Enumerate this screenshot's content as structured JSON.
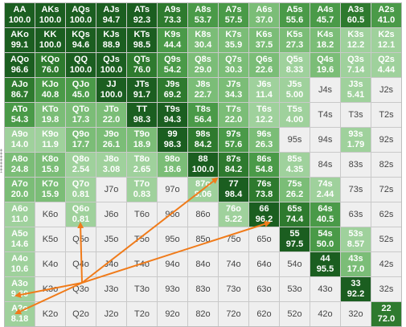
{
  "colors": {
    "lvl0": "#efefef",
    "lvl1": "#9fd19c",
    "lvl2": "#7bbd77",
    "lvl3": "#4a9a48",
    "lvl4": "#2e7a2e",
    "lvl5": "#1b5e20",
    "arrow": "#f07b1a"
  },
  "grid": [
    [
      [
        "AA",
        "100.0"
      ],
      [
        "AKs",
        "100.0"
      ],
      [
        "AQs",
        "100.0"
      ],
      [
        "AJs",
        "94.7"
      ],
      [
        "ATs",
        "92.3"
      ],
      [
        "A9s",
        "73.3"
      ],
      [
        "A8s",
        "53.7"
      ],
      [
        "A7s",
        "57.5"
      ],
      [
        "A6s",
        "37.0"
      ],
      [
        "A5s",
        "55.6"
      ],
      [
        "A4s",
        "45.7"
      ],
      [
        "A3s",
        "60.5"
      ],
      [
        "A2s",
        "41.0"
      ]
    ],
    [
      [
        "AKo",
        "99.1"
      ],
      [
        "KK",
        "100.0"
      ],
      [
        "KQs",
        "94.6"
      ],
      [
        "KJs",
        "88.9"
      ],
      [
        "KTs",
        "98.5"
      ],
      [
        "K9s",
        "44.4"
      ],
      [
        "K8s",
        "30.4"
      ],
      [
        "K7s",
        "35.9"
      ],
      [
        "K6s",
        "37.5"
      ],
      [
        "K5s",
        "27.3"
      ],
      [
        "K4s",
        "18.2"
      ],
      [
        "K3s",
        "12.2"
      ],
      [
        "K2s",
        "12.1"
      ]
    ],
    [
      [
        "AQo",
        "96.6"
      ],
      [
        "KQo",
        "76.0"
      ],
      [
        "QQ",
        "100.0"
      ],
      [
        "QJs",
        "100.0"
      ],
      [
        "QTs",
        "76.0"
      ],
      [
        "Q9s",
        "54.2"
      ],
      [
        "Q8s",
        "29.0"
      ],
      [
        "Q7s",
        "30.3"
      ],
      [
        "Q6s",
        "22.6"
      ],
      [
        "Q5s",
        "8.33"
      ],
      [
        "Q4s",
        "19.6"
      ],
      [
        "Q3s",
        "7.14"
      ],
      [
        "Q2s",
        "4.44"
      ]
    ],
    [
      [
        "AJo",
        "86.7"
      ],
      [
        "KJo",
        "40.8"
      ],
      [
        "QJo",
        "45.0"
      ],
      [
        "JJ",
        "100.0"
      ],
      [
        "JTs",
        "91.7"
      ],
      [
        "J9s",
        "69.2"
      ],
      [
        "J8s",
        "22.7"
      ],
      [
        "J7s",
        "34.3"
      ],
      [
        "J6s",
        "11.4"
      ],
      [
        "J5s",
        "5.00"
      ],
      [
        "J4s",
        ""
      ],
      [
        "J3s",
        "5.41"
      ],
      [
        "J2s",
        ""
      ]
    ],
    [
      [
        "ATo",
        "54.3"
      ],
      [
        "KTo",
        "19.8"
      ],
      [
        "QTo",
        "17.3"
      ],
      [
        "JTo",
        "22.0"
      ],
      [
        "TT",
        "98.3"
      ],
      [
        "T9s",
        "94.3"
      ],
      [
        "T8s",
        "56.4"
      ],
      [
        "T7s",
        "22.0"
      ],
      [
        "T6s",
        "12.2"
      ],
      [
        "T5s",
        "4.00"
      ],
      [
        "T4s",
        ""
      ],
      [
        "T3s",
        ""
      ],
      [
        "T2s",
        ""
      ]
    ],
    [
      [
        "A9o",
        "14.0"
      ],
      [
        "K9o",
        "11.9"
      ],
      [
        "Q9o",
        "17.7"
      ],
      [
        "J9o",
        "26.1"
      ],
      [
        "T9o",
        "18.9"
      ],
      [
        "99",
        "98.3"
      ],
      [
        "98s",
        "84.2"
      ],
      [
        "97s",
        "57.6"
      ],
      [
        "96s",
        "26.3"
      ],
      [
        "95s",
        ""
      ],
      [
        "94s",
        ""
      ],
      [
        "93s",
        "1.79"
      ],
      [
        "92s",
        ""
      ]
    ],
    [
      [
        "A8o",
        "24.8"
      ],
      [
        "K8o",
        "15.9"
      ],
      [
        "Q8o",
        "2.54"
      ],
      [
        "J8o",
        "3.08"
      ],
      [
        "T8o",
        "2.65"
      ],
      [
        "98o",
        "18.6"
      ],
      [
        "88",
        "100.0"
      ],
      [
        "87s",
        "84.2"
      ],
      [
        "86s",
        "54.8"
      ],
      [
        "85s",
        "4.35"
      ],
      [
        "84s",
        ""
      ],
      [
        "83s",
        ""
      ],
      [
        "82s",
        ""
      ]
    ],
    [
      [
        "A7o",
        "20.0"
      ],
      [
        "K7o",
        "15.9"
      ],
      [
        "Q7o",
        "0.81"
      ],
      [
        "J7o",
        ""
      ],
      [
        "T7o",
        "0.83"
      ],
      [
        "97o",
        ""
      ],
      [
        "87o",
        "8.06"
      ],
      [
        "77",
        "98.4"
      ],
      [
        "76s",
        "73.8"
      ],
      [
        "75s",
        "26.2"
      ],
      [
        "74s",
        "2.44"
      ],
      [
        "73s",
        ""
      ],
      [
        "72s",
        ""
      ]
    ],
    [
      [
        "A6o",
        "11.0"
      ],
      [
        "K6o",
        ""
      ],
      [
        "Q6o",
        "0.81"
      ],
      [
        "J6o",
        ""
      ],
      [
        "T6o",
        ""
      ],
      [
        "96o",
        ""
      ],
      [
        "86o",
        ""
      ],
      [
        "76o",
        "5.22"
      ],
      [
        "66",
        "96.2"
      ],
      [
        "65s",
        "74.4"
      ],
      [
        "64s",
        "40.5"
      ],
      [
        "63s",
        ""
      ],
      [
        "62s",
        ""
      ]
    ],
    [
      [
        "A5o",
        "14.6"
      ],
      [
        "K5o",
        ""
      ],
      [
        "Q5o",
        ""
      ],
      [
        "J5o",
        ""
      ],
      [
        "T5o",
        ""
      ],
      [
        "95o",
        ""
      ],
      [
        "85o",
        ""
      ],
      [
        "75o",
        ""
      ],
      [
        "65o",
        ""
      ],
      [
        "55",
        "97.5"
      ],
      [
        "54s",
        "50.0"
      ],
      [
        "53s",
        "8.57"
      ],
      [
        "52s",
        ""
      ]
    ],
    [
      [
        "A4o",
        "10.6"
      ],
      [
        "K4o",
        ""
      ],
      [
        "Q4o",
        ""
      ],
      [
        "J4o",
        ""
      ],
      [
        "T4o",
        ""
      ],
      [
        "94o",
        ""
      ],
      [
        "84o",
        ""
      ],
      [
        "74o",
        ""
      ],
      [
        "64o",
        ""
      ],
      [
        "54o",
        ""
      ],
      [
        "44",
        "95.5"
      ],
      [
        "43s",
        "17.0"
      ],
      [
        "42s",
        ""
      ]
    ],
    [
      [
        "A3o",
        "9.60"
      ],
      [
        "K3o",
        ""
      ],
      [
        "Q3o",
        ""
      ],
      [
        "J3o",
        ""
      ],
      [
        "T3o",
        ""
      ],
      [
        "93o",
        ""
      ],
      [
        "83o",
        ""
      ],
      [
        "73o",
        ""
      ],
      [
        "63o",
        ""
      ],
      [
        "53o",
        ""
      ],
      [
        "43o",
        ""
      ],
      [
        "33",
        "92.2"
      ],
      [
        "32s",
        ""
      ]
    ],
    [
      [
        "A2o",
        "8.18"
      ],
      [
        "K2o",
        ""
      ],
      [
        "Q2o",
        ""
      ],
      [
        "J2o",
        ""
      ],
      [
        "T2o",
        ""
      ],
      [
        "92o",
        ""
      ],
      [
        "82o",
        ""
      ],
      [
        "72o",
        ""
      ],
      [
        "62o",
        ""
      ],
      [
        "52o",
        ""
      ],
      [
        "42o",
        ""
      ],
      [
        "32o",
        ""
      ],
      [
        "22",
        "72.0"
      ]
    ]
  ]
}
